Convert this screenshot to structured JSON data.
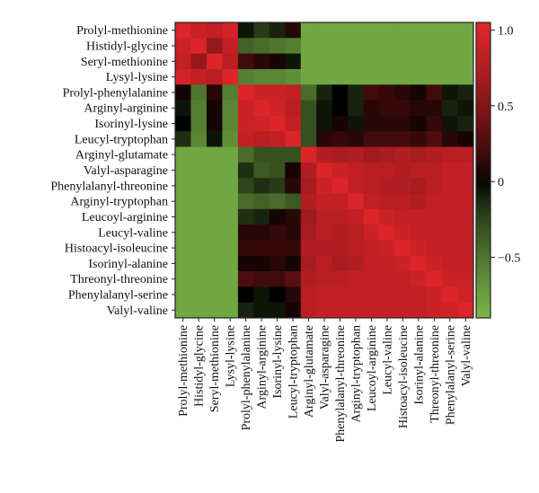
{
  "chart_data": {
    "type": "heatmap",
    "title": "",
    "xlabel": "",
    "ylabel": "",
    "labels": [
      "Prolyl-methionine",
      "Histidyl-glycine",
      "Seryl-methionine",
      "Lysyl-lysine",
      "Prolyl-phenylalanine",
      "Arginyl-arginine",
      "Isorinyl-lysine",
      "Leucyl-tryptophan",
      "Arginyl-glutamate",
      "Valyl-asparagine",
      "Phenylalanyl-threonine",
      "Arginyl-tryptophan",
      "Leucoyl-arginine",
      "Leucyl-valine",
      "Histoacyl-isoleucine",
      "Isorinyl-alanine",
      "Threonyl-threonine",
      "Phenylalanyl-serine",
      "Valyl-valine"
    ],
    "x_labels": [
      "Prolyl-methionine",
      "Histidyl-glycine",
      "Seryl-methionine",
      "Lysyl-lysine",
      "Prolyl-phenylalanine",
      "Arginyl-arginine",
      "Isorinyl-lysine",
      "Leucyl-tryptophan",
      "Arginyl-glutamate",
      "Valyl-asparagine",
      "Phenylalanyl-threonine",
      "Arginyl-tryptophan",
      "Leucoyl-arginine",
      "Leucyl-valine",
      "Histoacyl-isoleucine",
      "Isorinyl-alanine",
      "Threonyl-threonine",
      "Phenylalanyl-serine",
      "Valyl-valine"
    ],
    "colorbar": {
      "min": -0.9,
      "max": 1.05,
      "ticks": [
        1.0,
        0.5,
        0,
        -0.5
      ],
      "tick_labels": [
        "1.0",
        "0.5",
        "0",
        "−0.5"
      ],
      "colors": {
        "low": "#7ab648",
        "mid": "#000000",
        "high": "#e3262a"
      }
    },
    "values": [
      [
        1.0,
        0.9,
        0.85,
        0.95,
        -0.05,
        -0.2,
        -0.1,
        0.1,
        -0.8,
        -0.8,
        -0.8,
        -0.8,
        -0.8,
        -0.8,
        -0.8,
        -0.8,
        -0.8,
        -0.8,
        -0.8
      ],
      [
        0.9,
        1.0,
        0.6,
        0.85,
        -0.4,
        -0.45,
        -0.5,
        -0.55,
        -0.8,
        -0.8,
        -0.8,
        -0.8,
        -0.8,
        -0.8,
        -0.8,
        -0.8,
        -0.8,
        -0.8,
        -0.8
      ],
      [
        0.85,
        0.6,
        1.0,
        0.8,
        0.2,
        0.1,
        0.05,
        -0.05,
        -0.8,
        -0.8,
        -0.8,
        -0.8,
        -0.8,
        -0.8,
        -0.8,
        -0.8,
        -0.8,
        -0.8,
        -0.8
      ],
      [
        0.95,
        0.85,
        0.8,
        1.0,
        -0.55,
        -0.6,
        -0.6,
        -0.65,
        -0.8,
        -0.8,
        -0.8,
        -0.8,
        -0.8,
        -0.8,
        -0.8,
        -0.8,
        -0.8,
        -0.8,
        -0.8
      ],
      [
        0.05,
        -0.5,
        0.1,
        -0.55,
        1.0,
        0.9,
        0.9,
        0.85,
        -0.45,
        -0.1,
        0.0,
        -0.1,
        0.2,
        0.15,
        0.1,
        0.05,
        0.2,
        -0.05,
        -0.1
      ],
      [
        -0.05,
        -0.55,
        0.05,
        -0.6,
        0.9,
        1.0,
        0.92,
        0.8,
        -0.3,
        -0.05,
        0.0,
        -0.1,
        0.1,
        0.15,
        0.15,
        0.1,
        0.1,
        -0.1,
        -0.05
      ],
      [
        0.0,
        -0.55,
        0.05,
        -0.6,
        0.9,
        0.92,
        1.0,
        0.85,
        -0.3,
        -0.05,
        0.05,
        -0.05,
        0.1,
        0.1,
        0.1,
        0.05,
        0.15,
        -0.05,
        -0.1
      ],
      [
        -0.15,
        -0.6,
        -0.05,
        -0.65,
        0.85,
        0.8,
        0.85,
        1.0,
        -0.3,
        0.1,
        0.15,
        0.1,
        0.2,
        0.2,
        0.2,
        0.15,
        0.25,
        0.1,
        0.05
      ],
      [
        -0.8,
        -0.8,
        -0.8,
        -0.8,
        -0.45,
        -0.3,
        -0.3,
        -0.3,
        1.0,
        0.75,
        0.7,
        0.75,
        0.65,
        0.7,
        0.75,
        0.7,
        0.75,
        0.8,
        0.8
      ],
      [
        -0.8,
        -0.8,
        -0.8,
        -0.8,
        -0.15,
        -0.35,
        -0.3,
        0.05,
        0.75,
        1.0,
        0.9,
        0.85,
        0.8,
        0.8,
        0.75,
        0.8,
        0.8,
        0.85,
        0.85
      ],
      [
        -0.8,
        -0.8,
        -0.8,
        -0.8,
        -0.25,
        -0.15,
        -0.2,
        0.1,
        0.7,
        0.9,
        1.0,
        0.85,
        0.8,
        0.75,
        0.75,
        0.7,
        0.8,
        0.85,
        0.85
      ],
      [
        -0.8,
        -0.8,
        -0.8,
        -0.8,
        -0.45,
        -0.4,
        -0.45,
        -0.35,
        0.75,
        0.85,
        0.85,
        1.0,
        0.85,
        0.8,
        0.8,
        0.75,
        0.85,
        0.85,
        0.85
      ],
      [
        -0.8,
        -0.8,
        -0.8,
        -0.8,
        -0.15,
        -0.1,
        0.05,
        0.1,
        0.65,
        0.8,
        0.8,
        0.85,
        1.0,
        0.9,
        0.85,
        0.85,
        0.85,
        0.85,
        0.85
      ],
      [
        -0.8,
        -0.8,
        -0.8,
        -0.8,
        0.1,
        0.1,
        0.15,
        0.1,
        0.7,
        0.8,
        0.75,
        0.8,
        0.9,
        1.0,
        0.9,
        0.85,
        0.85,
        0.85,
        0.85
      ],
      [
        -0.8,
        -0.8,
        -0.8,
        -0.8,
        0.15,
        0.15,
        0.15,
        0.15,
        0.75,
        0.75,
        0.75,
        0.8,
        0.85,
        0.9,
        1.0,
        0.9,
        0.85,
        0.85,
        0.85
      ],
      [
        -0.8,
        -0.8,
        -0.8,
        -0.8,
        0.05,
        0.05,
        0.1,
        0.05,
        0.7,
        0.8,
        0.7,
        0.75,
        0.85,
        0.85,
        0.9,
        1.0,
        0.9,
        0.85,
        0.85
      ],
      [
        -0.8,
        -0.8,
        -0.8,
        -0.8,
        0.25,
        0.2,
        0.2,
        0.3,
        0.75,
        0.8,
        0.8,
        0.85,
        0.85,
        0.85,
        0.85,
        0.9,
        1.0,
        0.9,
        0.9
      ],
      [
        -0.8,
        -0.8,
        -0.8,
        -0.8,
        0.0,
        -0.05,
        0.0,
        0.1,
        0.8,
        0.85,
        0.85,
        0.85,
        0.85,
        0.85,
        0.85,
        0.85,
        0.9,
        1.0,
        0.92
      ],
      [
        -0.8,
        -0.8,
        -0.8,
        -0.8,
        -0.1,
        -0.05,
        -0.05,
        0.05,
        0.8,
        0.85,
        0.85,
        0.85,
        0.85,
        0.85,
        0.85,
        0.85,
        0.9,
        0.92,
        1.0
      ]
    ]
  }
}
